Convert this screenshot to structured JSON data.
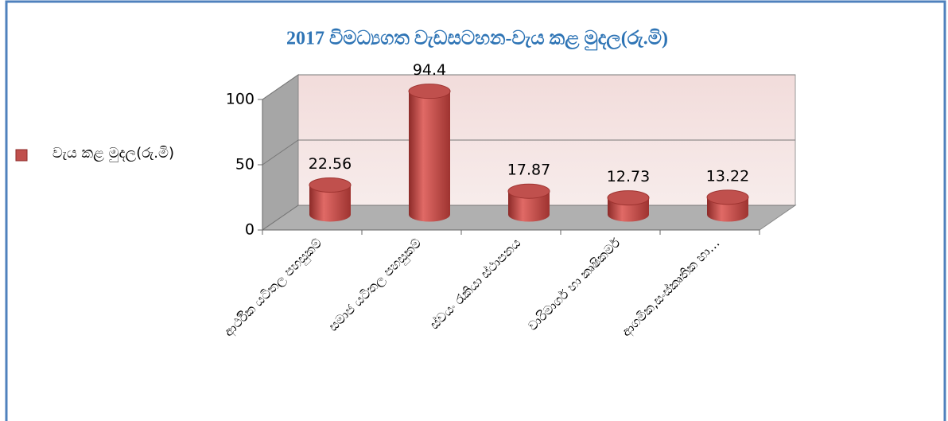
{
  "chart_data": {
    "type": "bar3d",
    "title": "2017 විමධ්‍යගත වැඩසටහන-වැය කළ මුදල(රු.මි)",
    "categories": [
      "ආර්ථික යටිතල පහසුකම්",
      "සමාජ යටිතල පහසුකම්",
      "ස්වයං රැකියා ස්ථාපනය",
      "වාරිමාර්ග හා කෘෂිකර්ම",
      "ආගමික,සංස්කෘතික හා…"
    ],
    "series": [
      {
        "name": "වැය කළ මුදල(රු.මි)",
        "color": "#c0504d",
        "values": [
          22.56,
          94.4,
          17.87,
          12.73,
          13.22
        ]
      }
    ],
    "ylim": [
      0,
      100
    ],
    "yticks": [
      0,
      50,
      100
    ],
    "grid": true,
    "legend": "left"
  }
}
